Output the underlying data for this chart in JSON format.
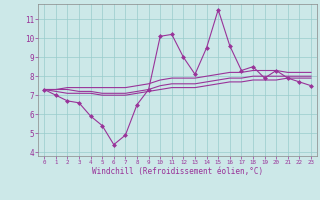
{
  "xlabel": "Windchill (Refroidissement éolien,°C)",
  "bg_color": "#cce8e8",
  "line_color": "#993399",
  "x": [
    0,
    1,
    2,
    3,
    4,
    5,
    6,
    7,
    8,
    9,
    10,
    11,
    12,
    13,
    14,
    15,
    16,
    17,
    18,
    19,
    20,
    21,
    22,
    23
  ],
  "line1": [
    7.3,
    7.0,
    6.7,
    6.6,
    5.9,
    5.4,
    4.4,
    4.9,
    6.5,
    7.3,
    10.1,
    10.2,
    9.0,
    8.1,
    9.5,
    11.5,
    9.6,
    8.3,
    8.5,
    7.9,
    8.3,
    7.9,
    7.7,
    7.5
  ],
  "line2": [
    7.3,
    7.2,
    7.1,
    7.1,
    7.1,
    7.0,
    7.0,
    7.0,
    7.1,
    7.2,
    7.3,
    7.4,
    7.4,
    7.4,
    7.5,
    7.6,
    7.7,
    7.7,
    7.8,
    7.8,
    7.8,
    7.9,
    7.9,
    7.9
  ],
  "line3": [
    7.3,
    7.3,
    7.3,
    7.2,
    7.2,
    7.1,
    7.1,
    7.1,
    7.2,
    7.3,
    7.5,
    7.6,
    7.6,
    7.6,
    7.7,
    7.8,
    7.9,
    7.9,
    8.0,
    8.0,
    8.0,
    8.0,
    8.0,
    8.0
  ],
  "line4": [
    7.3,
    7.3,
    7.4,
    7.4,
    7.4,
    7.4,
    7.4,
    7.4,
    7.5,
    7.6,
    7.8,
    7.9,
    7.9,
    7.9,
    8.0,
    8.1,
    8.2,
    8.2,
    8.3,
    8.3,
    8.3,
    8.2,
    8.2,
    8.2
  ],
  "ylim": [
    3.8,
    11.8
  ],
  "xlim": [
    -0.5,
    23.5
  ],
  "yticks": [
    4,
    5,
    6,
    7,
    8,
    9,
    10,
    11
  ],
  "xticks": [
    0,
    1,
    2,
    3,
    4,
    5,
    6,
    7,
    8,
    9,
    10,
    11,
    12,
    13,
    14,
    15,
    16,
    17,
    18,
    19,
    20,
    21,
    22,
    23
  ],
  "grid_color": "#99cccc",
  "markersize": 2.5,
  "linewidth": 0.8
}
